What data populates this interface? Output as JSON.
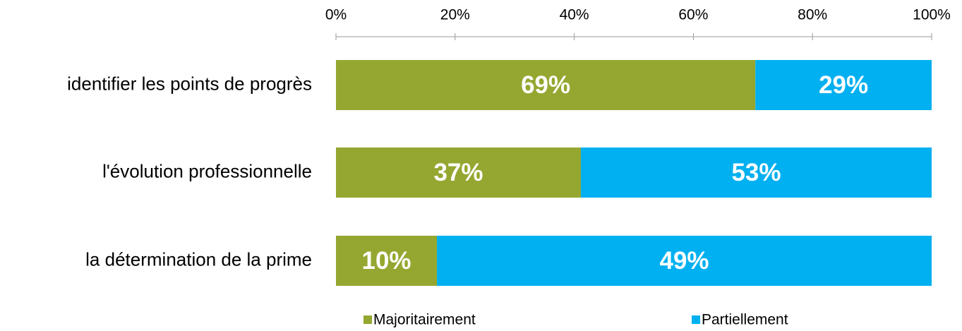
{
  "chart_data": {
    "type": "bar",
    "orientation": "horizontal",
    "stacking": "percent",
    "categories": [
      "identifier les points de progrès",
      "l'évolution professionnelle",
      "la détermination de la prime"
    ],
    "series": [
      {
        "name": "Majoritairement",
        "color": "#95a730",
        "values": [
          69,
          37,
          10
        ],
        "value_labels": [
          "69%",
          "37%",
          "10%"
        ]
      },
      {
        "name": "Partiellement",
        "color": "#00b0f0",
        "values": [
          29,
          53,
          49
        ],
        "value_labels": [
          "29%",
          "53%",
          "49%"
        ]
      }
    ],
    "xlim": [
      0,
      100
    ],
    "xticks": [
      {
        "value": 0,
        "label": "0%"
      },
      {
        "value": 20,
        "label": "20%"
      },
      {
        "value": 40,
        "label": "40%"
      },
      {
        "value": 60,
        "label": "60%"
      },
      {
        "value": 80,
        "label": "80%"
      },
      {
        "value": 100,
        "label": "100%"
      }
    ],
    "legend": "bottom"
  }
}
